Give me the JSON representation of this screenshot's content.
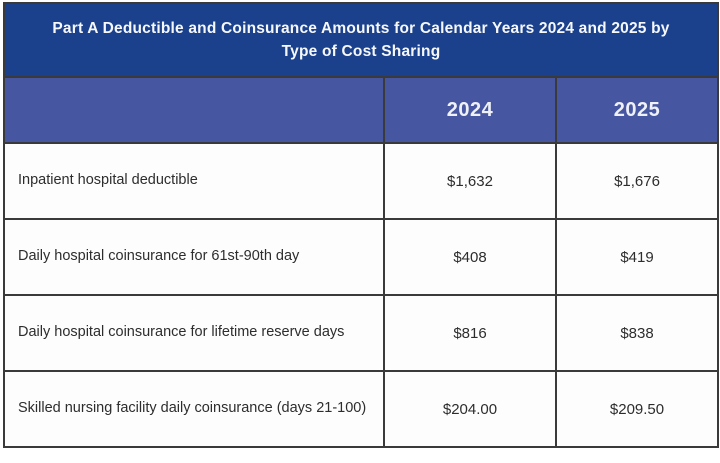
{
  "title": "Part A Deductible and Coinsurance Amounts for Calendar Years 2024 and 2025 by Type of Cost Sharing",
  "colors": {
    "title_bg": "#1b418c",
    "header_bg": "#4656a0",
    "grid_border": "#3a3a3a",
    "cell_bg": "#fdfdfd",
    "body_text": "#2d2d2d",
    "header_text": "#eef1f8"
  },
  "table": {
    "columns": [
      "",
      "2024",
      "2025"
    ],
    "rows": [
      {
        "label": "Inpatient hospital deductible",
        "y2024": "$1,632",
        "y2025": "$1,676"
      },
      {
        "label": "Daily hospital coinsurance for 61st-90th day",
        "y2024": "$408",
        "y2025": "$419"
      },
      {
        "label": "Daily hospital coinsurance for lifetime reserve days",
        "y2024": "$816",
        "y2025": "$838"
      },
      {
        "label": "Skilled nursing facility daily coinsurance (days 21-100)",
        "y2024": "$204.00",
        "y2025": "$209.50"
      }
    ]
  },
  "chart_data": {
    "type": "table",
    "title": "Part A Deductible and Coinsurance Amounts for Calendar Years 2024 and 2025 by Type of Cost Sharing",
    "columns": [
      "Type of Cost Sharing",
      "2024",
      "2025"
    ],
    "rows": [
      [
        "Inpatient hospital deductible",
        "$1,632",
        "$1,676"
      ],
      [
        "Daily hospital coinsurance for 61st-90th day",
        "$408",
        "$419"
      ],
      [
        "Daily hospital coinsurance for lifetime reserve days",
        "$816",
        "$838"
      ],
      [
        "Skilled nursing facility daily coinsurance (days 21-100)",
        "$204.00",
        "$209.50"
      ]
    ],
    "numeric_values_usd": {
      "inpatient_hospital_deductible": {
        "2024": 1632,
        "2025": 1676
      },
      "daily_hospital_coinsurance_61st_90th_day": {
        "2024": 408,
        "2025": 419
      },
      "daily_hospital_coinsurance_lifetime_reserve_days": {
        "2024": 816,
        "2025": 838
      },
      "skilled_nursing_facility_daily_coinsurance_days_21_100": {
        "2024": 204.0,
        "2025": 209.5
      }
    }
  }
}
